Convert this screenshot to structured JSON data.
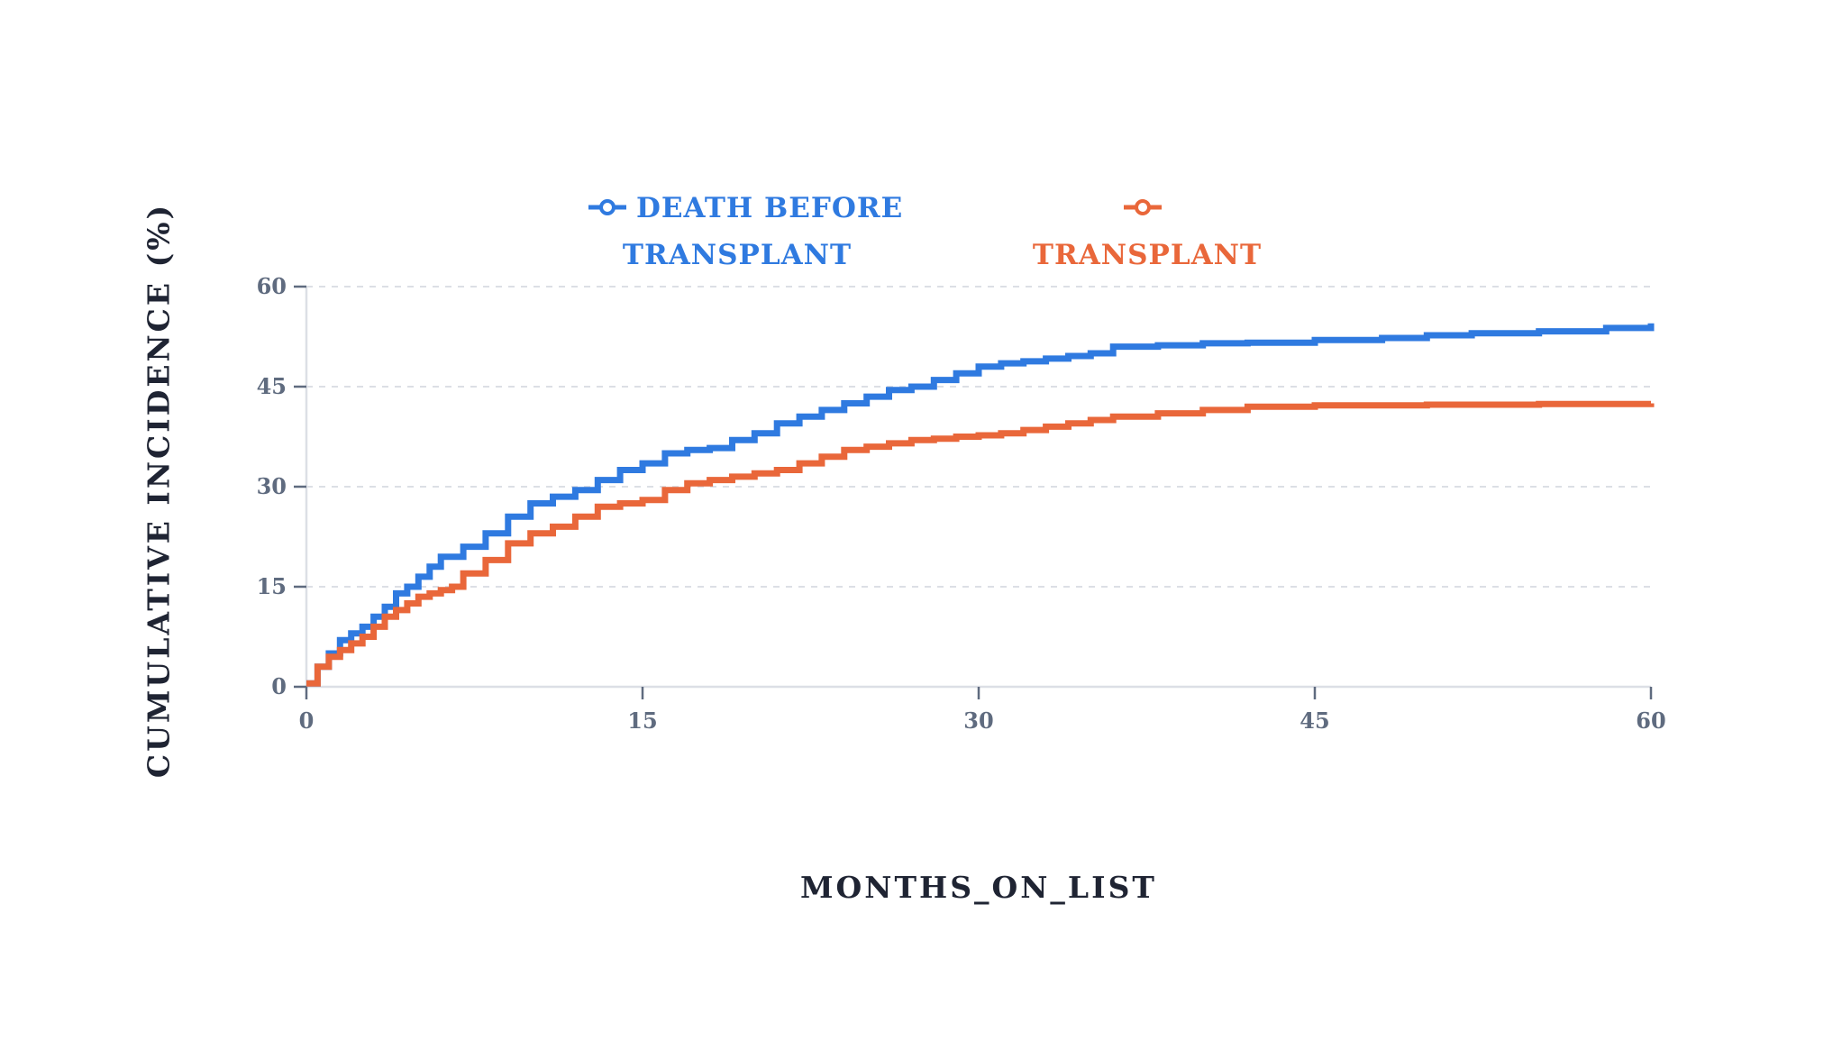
{
  "chart_data": {
    "type": "line",
    "step": true,
    "xlabel": "MONTHS_ON_LIST",
    "ylabel": "CUMULATIVE INCIDENCE (%)",
    "xlim": [
      0,
      60
    ],
    "ylim": [
      0,
      60
    ],
    "xticks": [
      0,
      15,
      30,
      45,
      60
    ],
    "yticks": [
      0,
      15,
      30,
      45,
      60
    ],
    "grid": "horizontal dashed",
    "legend_position": "top-center",
    "series": [
      {
        "name": "DEATH BEFORE TRANSPLANT",
        "legend_lines": [
          "DEATH BEFORE",
          "TRANSPLANT"
        ],
        "color": "#2f7ae0",
        "x": [
          0,
          0.5,
          1,
          1.5,
          2,
          2.5,
          3,
          3.5,
          4,
          4.5,
          5,
          5.5,
          6,
          7,
          8,
          9,
          10,
          11,
          12,
          13,
          14,
          15,
          16,
          17,
          18,
          19,
          20,
          21,
          22,
          23,
          24,
          25,
          26,
          27,
          28,
          29,
          30,
          31,
          32,
          33,
          34,
          35,
          36,
          38,
          40,
          42,
          45,
          48,
          50,
          52,
          55,
          58,
          60
        ],
        "y": [
          0.5,
          3,
          5,
          7,
          8,
          9,
          10.5,
          12,
          14,
          15,
          16.5,
          18,
          19.5,
          21,
          23,
          25.5,
          27.5,
          28.5,
          29.5,
          31,
          32.5,
          33.5,
          35,
          35.5,
          35.8,
          37,
          38,
          39.5,
          40.5,
          41.5,
          42.5,
          43.5,
          44.5,
          45,
          46,
          47,
          48,
          48.5,
          48.8,
          49.2,
          49.6,
          50,
          51,
          51.2,
          51.5,
          51.6,
          52,
          52.3,
          52.7,
          53,
          53.3,
          53.8,
          54.5
        ]
      },
      {
        "name": "TRANSPLANT",
        "legend_lines": [
          "",
          "TRANSPLANT"
        ],
        "color": "#e9673a",
        "x": [
          0,
          0.5,
          1,
          1.5,
          2,
          2.5,
          3,
          3.5,
          4,
          4.5,
          5,
          5.5,
          6,
          6.5,
          7,
          8,
          9,
          10,
          11,
          12,
          13,
          14,
          15,
          16,
          17,
          18,
          19,
          20,
          21,
          22,
          23,
          24,
          25,
          26,
          27,
          28,
          29,
          30,
          31,
          32,
          33,
          34,
          35,
          36,
          38,
          40,
          42,
          45,
          50,
          55,
          60
        ],
        "y": [
          0.5,
          3,
          4.5,
          5.5,
          6.5,
          7.5,
          9,
          10.5,
          11.5,
          12.5,
          13.5,
          14,
          14.5,
          15,
          17,
          19,
          21.5,
          23,
          24,
          25.5,
          27,
          27.5,
          28,
          29.5,
          30.5,
          31,
          31.5,
          32,
          32.5,
          33.5,
          34.5,
          35.5,
          36,
          36.5,
          37,
          37.2,
          37.5,
          37.7,
          38,
          38.5,
          39,
          39.5,
          40,
          40.5,
          41,
          41.5,
          42,
          42.2,
          42.3,
          42.4,
          42.5
        ]
      }
    ]
  }
}
